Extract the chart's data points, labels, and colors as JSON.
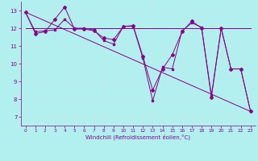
{
  "xlabel": "Windchill (Refroidissement éolien,°C)",
  "bg_color": "#b2f0f0",
  "grid_color": "#c0e8e8",
  "line_color": "#880088",
  "xlim": [
    -0.5,
    23.5
  ],
  "ylim": [
    6.5,
    13.5
  ],
  "yticks": [
    7,
    8,
    9,
    10,
    11,
    12,
    13
  ],
  "xticks": [
    0,
    1,
    2,
    3,
    4,
    5,
    6,
    7,
    8,
    9,
    10,
    11,
    12,
    13,
    14,
    15,
    16,
    17,
    18,
    19,
    20,
    21,
    22,
    23
  ],
  "series1_x": [
    0,
    1,
    2,
    3,
    4,
    5,
    6,
    7,
    8,
    9,
    10,
    11,
    12,
    13,
    14,
    15,
    16,
    17,
    18,
    19,
    20,
    21,
    22,
    23
  ],
  "series1_y": [
    12.9,
    11.7,
    11.8,
    12.5,
    13.2,
    11.95,
    11.95,
    11.85,
    11.45,
    11.35,
    12.1,
    12.15,
    10.4,
    8.5,
    9.7,
    10.5,
    11.8,
    12.4,
    12.0,
    8.1,
    12.0,
    9.7,
    9.7,
    7.3
  ],
  "series2_x": [
    0,
    1,
    2,
    3,
    4,
    5,
    6,
    7,
    8,
    9,
    10,
    11,
    12,
    13,
    14,
    15,
    16,
    17,
    18,
    19,
    20,
    21,
    22,
    23
  ],
  "series2_y": [
    12.9,
    11.8,
    11.85,
    11.9,
    12.5,
    12.0,
    12.0,
    11.9,
    11.3,
    11.1,
    12.1,
    12.1,
    10.3,
    7.9,
    9.8,
    9.7,
    11.85,
    12.3,
    12.05,
    8.2,
    12.0,
    9.7,
    9.7,
    7.3
  ],
  "series3_x": [
    0,
    23
  ],
  "series3_y": [
    12.0,
    12.0
  ],
  "trend_x": [
    0,
    23
  ],
  "trend_y": [
    12.9,
    7.3
  ]
}
